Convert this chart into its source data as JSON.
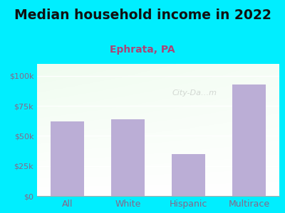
{
  "title": "Median household income in 2022",
  "subtitle": "Ephrata, PA",
  "categories": [
    "All",
    "White",
    "Hispanic",
    "Multirace"
  ],
  "values": [
    62000,
    64000,
    35000,
    93000
  ],
  "bar_color": "#bbaed6",
  "title_fontsize": 13.5,
  "subtitle_fontsize": 10,
  "subtitle_color": "#aa4477",
  "title_color": "#111111",
  "tick_color": "#886688",
  "background_outer": "#00eeff",
  "bg_color_topleft": "#d8eed8",
  "bg_color_topright": "#e8f4e8",
  "bg_color_bottom": "#f8fff8",
  "ylim": [
    0,
    110000
  ],
  "yticks": [
    0,
    25000,
    50000,
    75000,
    100000
  ],
  "ytick_labels": [
    "$0",
    "$25k",
    "$50k",
    "$75k",
    "$100k"
  ],
  "bar_width": 0.55
}
